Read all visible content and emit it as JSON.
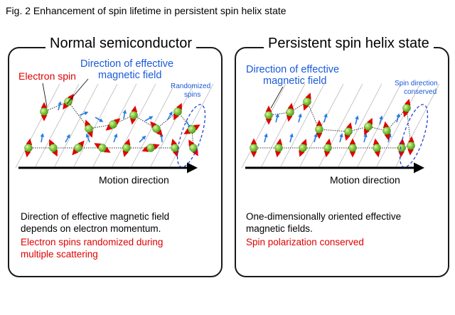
{
  "figure_title": "Fig. 2 Enhancement of spin lifetime in persistent spin helix state",
  "left_panel": {
    "title": "Normal semiconductor",
    "label_electron_spin": "Electron spin",
    "label_field_line1": "Direction of effective",
    "label_field_line2": "magnetic field",
    "label_randomized_line1": "Randomized",
    "label_randomized_line2": "spins",
    "motion_label": "Motion direction",
    "desc_line1": "Direction of effective magnetic field",
    "desc_line2": "depends on electron momentum.",
    "red_line1": "Electron spins randomized during",
    "red_line2": "multiple scattering"
  },
  "right_panel": {
    "title": "Persistent spin helix state",
    "label_field_line1": "Direction of effective",
    "label_field_line2": "magnetic field",
    "label_conserved_line1": "Spin direction",
    "label_conserved_line2": "conserved",
    "motion_label": "Motion direction",
    "desc_line1": "One-dimensionally oriented effective",
    "desc_line2": "magnetic fields.",
    "red_line1": "Spin polarization conserved"
  },
  "colors": {
    "spin_arrow": "#e00000",
    "field_arrow": "#2a7de1",
    "electron": "#7cc43a",
    "highlight": "#2244cc"
  }
}
